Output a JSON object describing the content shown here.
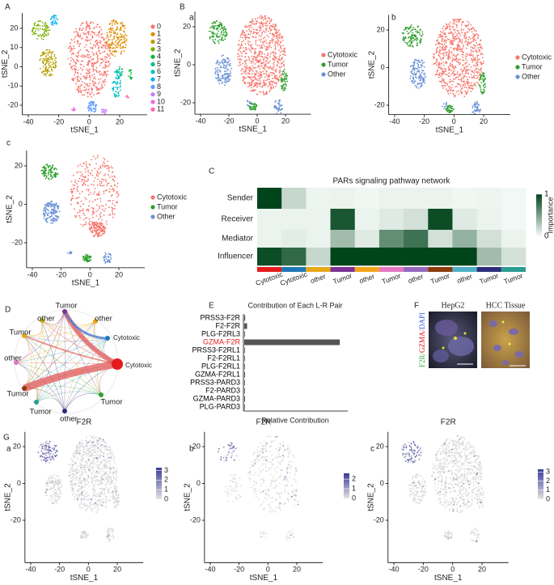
{
  "panel_letters": [
    "A",
    "B",
    "a",
    "b",
    "c",
    "C",
    "D",
    "E",
    "F",
    "G",
    "a",
    "b",
    "c"
  ],
  "chart_data": [
    {
      "type": "scatter",
      "xlabel": "tSNE_1",
      "ylabel": "tSNE_2",
      "xlim": [
        -44,
        38
      ],
      "ylim": [
        -25,
        28
      ],
      "xticks": [
        -40,
        -20,
        0,
        20
      ],
      "yticks": [
        -20,
        -10,
        0,
        10,
        20
      ],
      "series": [
        {
          "name": "0",
          "color": "#F8766D"
        },
        {
          "name": "1",
          "color": "#DE8C00"
        },
        {
          "name": "2",
          "color": "#B79F00"
        },
        {
          "name": "3",
          "color": "#7CAE00"
        },
        {
          "name": "4",
          "color": "#00BA38"
        },
        {
          "name": "5",
          "color": "#00C08B"
        },
        {
          "name": "6",
          "color": "#00BFC4"
        },
        {
          "name": "7",
          "color": "#00B4F0"
        },
        {
          "name": "8",
          "color": "#619CFF"
        },
        {
          "name": "9",
          "color": "#C77CFF"
        },
        {
          "name": "10",
          "color": "#F564E3"
        },
        {
          "name": "11",
          "color": "#FF64B0"
        }
      ]
    },
    {
      "type": "scatter",
      "xlabel": "tSNE_1",
      "ylabel": "tSNE_2",
      "xlim": [
        -44,
        38
      ],
      "ylim": [
        -26,
        28
      ],
      "xticks": [
        -40,
        -20,
        0,
        20
      ],
      "yticks": [
        -20,
        0,
        20
      ],
      "series": [
        {
          "name": "Cytotoxic",
          "color": "#F8766D"
        },
        {
          "name": "Tumor",
          "color": "#2CA02C"
        },
        {
          "name": "Other",
          "color": "#6A93D4"
        }
      ]
    },
    {
      "type": "scatter",
      "xlabel": "tSNE_1",
      "ylabel": "tSNE_2",
      "xlim": [
        -44,
        38
      ],
      "ylim": [
        -25,
        28
      ],
      "xticks": [
        -40,
        -20,
        0,
        20
      ],
      "yticks": [
        -20,
        0,
        20
      ],
      "series": [
        {
          "name": "Cytotoxic",
          "color": "#F8766D"
        },
        {
          "name": "Tumor",
          "color": "#2CA02C"
        },
        {
          "name": "Other",
          "color": "#6A93D4"
        }
      ]
    },
    {
      "type": "scatter",
      "xlabel": "tSNE_1",
      "ylabel": "tSNE_2",
      "xlim": [
        -44,
        38
      ],
      "ylim": [
        -33,
        28
      ],
      "xticks": [
        -40,
        -20,
        0,
        20
      ],
      "yticks": [
        -20,
        0,
        20
      ],
      "series": [
        {
          "name": "Cytotoxic",
          "color": "#F8766D"
        },
        {
          "name": "Tumor",
          "color": "#2CA02C"
        },
        {
          "name": "Other",
          "color": "#6A93D4"
        }
      ]
    },
    {
      "type": "heatmap",
      "title": "PARs signaling pathway network",
      "rows": [
        "Sender",
        "Receiver",
        "Mediator",
        "Influencer"
      ],
      "columns": [
        "Cytotoxic",
        "Cytotoxic",
        "other",
        "Tumor",
        "other",
        "Tumor",
        "other",
        "Tumor",
        "other",
        "Tumor",
        "Tumor"
      ],
      "column_colors": [
        "#e41a1c",
        "#1f78b4",
        "#e6a817",
        "#7b3294",
        "#f4a41b",
        "#e377c2",
        "#9467bd",
        "#8c3b0c",
        "#4fb0c6",
        "#2b2d7c",
        "#2a9d8f"
      ],
      "values": [
        [
          1,
          0.2,
          0.04,
          0.05,
          0.03,
          0.05,
          0.05,
          0.05,
          0.03,
          0.04,
          0.02
        ],
        [
          0.05,
          0.05,
          0.05,
          0.9,
          0.05,
          0.1,
          0.15,
          0.95,
          0.1,
          0.05,
          0.02
        ],
        [
          0.05,
          0.08,
          0.05,
          0.35,
          0.1,
          0.6,
          0.75,
          0.15,
          0.4,
          0.15,
          0.05
        ],
        [
          0.95,
          0.8,
          0.2,
          1,
          1,
          1,
          1,
          1,
          1,
          0.35,
          0.15
        ]
      ],
      "colorbar_label": "Importance",
      "clim": [
        0,
        1
      ],
      "cticks": [
        0,
        1
      ]
    },
    {
      "type": "bar",
      "orientation": "horizontal",
      "title": "Contribution of Each L-R Pair",
      "xlabel": "Relative Contribution",
      "categories": [
        "PRSS3-F2R",
        "F2-F2R",
        "PLG-F2RL3",
        "GZMA-F2R",
        "PRSS3-F2RL1",
        "F2-F2RL1",
        "PLG-F2RL1",
        "GZMA-F2RL1",
        "PRSS3-PARD3",
        "F2-PARD3",
        "GZMA-PARD3",
        "PLG-PARD3"
      ],
      "values": [
        0.01,
        0.03,
        0.005,
        1,
        0.003,
        0.003,
        0.003,
        0.008,
        0.003,
        0.003,
        0.008,
        0.003
      ],
      "label_colors": [
        "#000000",
        "#000000",
        "#000000",
        "#e41a1c",
        "#000000",
        "#000000",
        "#000000",
        "#000000",
        "#000000",
        "#000000",
        "#000000",
        "#000000"
      ],
      "color": "#555555",
      "xlim": [
        0,
        1.05
      ]
    },
    {
      "type": "scatter",
      "title": "F2R",
      "xlabel": "tSNE_1",
      "ylabel": "tSNE_2",
      "xlim": [
        -44,
        38
      ],
      "ylim": [
        -43,
        28
      ],
      "xticks": [
        -40,
        -20,
        0,
        20
      ],
      "yticks": [
        -20,
        0,
        20
      ],
      "clim": [
        0,
        3.3
      ],
      "cticks": [
        0,
        1,
        2,
        3
      ]
    },
    {
      "type": "scatter",
      "title": "F2R",
      "xlabel": "tSNE_1",
      "ylabel": "tSNE_2",
      "xlim": [
        -44,
        38
      ],
      "ylim": [
        -43,
        28
      ],
      "xticks": [
        -40,
        -20,
        0,
        20
      ],
      "yticks": [
        -20,
        0,
        20
      ],
      "clim": [
        0,
        2.6
      ],
      "cticks": [
        0,
        1,
        2
      ]
    },
    {
      "type": "scatter",
      "title": "F2R",
      "xlabel": "tSNE_1",
      "ylabel": "tSNE_2",
      "xlim": [
        -44,
        38
      ],
      "ylim": [
        -43,
        28
      ],
      "xticks": [
        -40,
        -20,
        0,
        20
      ],
      "yticks": [
        -20,
        0,
        20
      ],
      "clim": [
        0,
        3.3
      ],
      "cticks": [
        0,
        1,
        2,
        3
      ]
    }
  ],
  "network": {
    "nodes": [
      "Tumor",
      "other",
      "Cytotoxic",
      "Cytotoxic",
      "Tumor",
      "other",
      "Tumor",
      "Tumor",
      "other",
      "Tumor",
      "other"
    ]
  },
  "images": {
    "titles": [
      "HepG2",
      "HCC Tissue"
    ],
    "channel_label": [
      {
        "text": "F2R/",
        "color": "#3cb043"
      },
      {
        "text": "GZMA/",
        "color": "#e41a1c"
      },
      {
        "text": "DAPI",
        "color": "#3b5bdb"
      }
    ]
  }
}
